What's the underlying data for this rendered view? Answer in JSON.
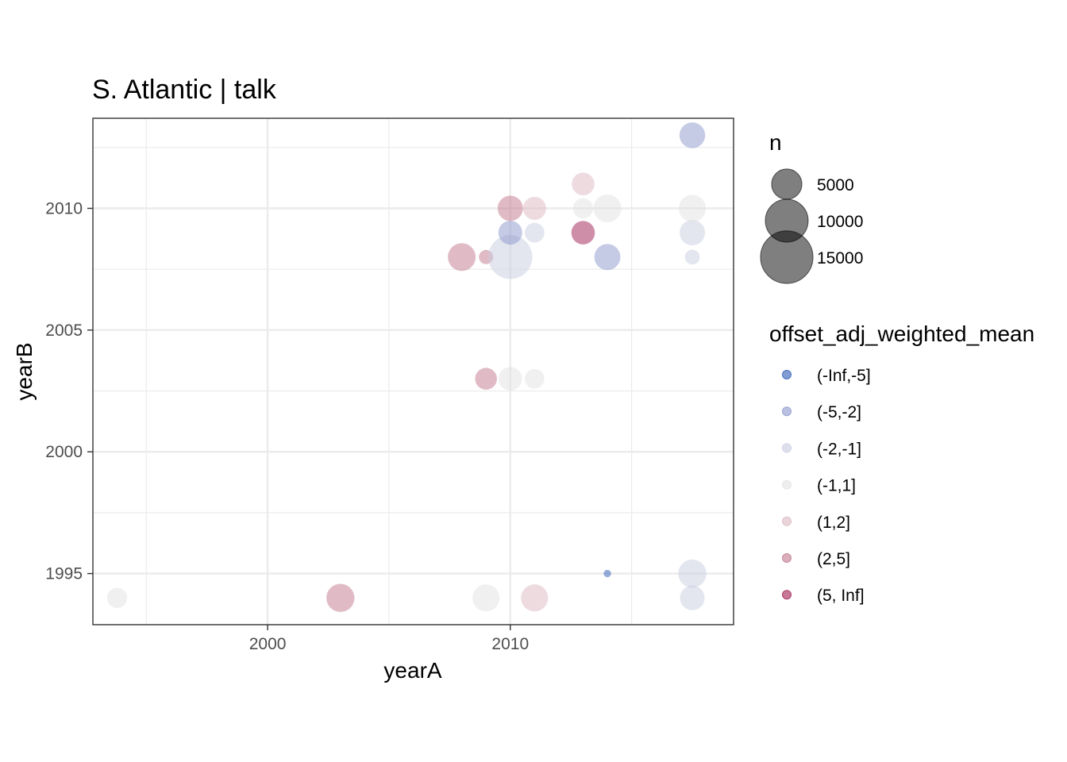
{
  "chart_data": {
    "type": "scatter",
    "title": "S. Atlantic | talk",
    "xlabel": "yearA",
    "ylabel": "yearB",
    "xlim": [
      1992.8,
      2019.2
    ],
    "ylim": [
      1992.9,
      2013.7
    ],
    "x_ticks": [
      2000,
      2010
    ],
    "y_ticks": [
      1995,
      2000,
      2005,
      2010
    ],
    "grid": true,
    "legend_position": "right",
    "size_legend": {
      "title": "n",
      "entries": [
        {
          "label": "5000",
          "value": 5000
        },
        {
          "label": "10000",
          "value": 10000
        },
        {
          "label": "15000",
          "value": 15000
        }
      ]
    },
    "color_legend": {
      "title": "offset_adj_weighted_mean",
      "entries": [
        {
          "label": "(-Inf,-5]",
          "color": "#2d5bb5"
        },
        {
          "label": "(-5,-2]",
          "color": "#8c98cc"
        },
        {
          "label": "(-2,-1]",
          "color": "#c7cbe0"
        },
        {
          "label": "(-1,1]",
          "color": "#e2e2e2"
        },
        {
          "label": "(1,2]",
          "color": "#dbb8c2"
        },
        {
          "label": "(2,5]",
          "color": "#c2788e"
        },
        {
          "label": "(5, Inf]",
          "color": "#a01e50"
        }
      ]
    },
    "points": [
      {
        "x": 1993.8,
        "y": 1994,
        "n": 2200,
        "class": "(-1,1]"
      },
      {
        "x": 2003,
        "y": 1994,
        "n": 4300,
        "class": "(2,5]"
      },
      {
        "x": 2009,
        "y": 1994,
        "n": 4000,
        "class": "(-1,1]"
      },
      {
        "x": 2011,
        "y": 1994,
        "n": 4000,
        "class": "(1,2]"
      },
      {
        "x": 2017.5,
        "y": 1994,
        "n": 3300,
        "class": "(-2,-1]"
      },
      {
        "x": 2014,
        "y": 1995,
        "n": 300,
        "class": "(-Inf,-5]"
      },
      {
        "x": 2017.5,
        "y": 1995,
        "n": 4300,
        "class": "(-2,-1]"
      },
      {
        "x": 2009,
        "y": 2003,
        "n": 2600,
        "class": "(2,5]"
      },
      {
        "x": 2010,
        "y": 2003,
        "n": 3000,
        "class": "(-1,1]"
      },
      {
        "x": 2011,
        "y": 2003,
        "n": 2100,
        "class": "(-1,1]"
      },
      {
        "x": 2008,
        "y": 2008,
        "n": 4200,
        "class": "(2,5]"
      },
      {
        "x": 2009,
        "y": 2008,
        "n": 1100,
        "class": "(2,5]"
      },
      {
        "x": 2010,
        "y": 2008,
        "n": 10500,
        "class": "(-2,-1]"
      },
      {
        "x": 2014,
        "y": 2008,
        "n": 3700,
        "class": "(-5,-2]"
      },
      {
        "x": 2017.5,
        "y": 2008,
        "n": 1200,
        "class": "(-2,-1]"
      },
      {
        "x": 2010,
        "y": 2009,
        "n": 3100,
        "class": "(-5,-2]"
      },
      {
        "x": 2011,
        "y": 2009,
        "n": 2100,
        "class": "(-2,-1]"
      },
      {
        "x": 2013,
        "y": 2009,
        "n": 3000,
        "class": "(5, Inf]"
      },
      {
        "x": 2017.5,
        "y": 2009,
        "n": 3500,
        "class": "(-2,-1]"
      },
      {
        "x": 2010,
        "y": 2010,
        "n": 3500,
        "class": "(2,5]"
      },
      {
        "x": 2011,
        "y": 2010,
        "n": 2900,
        "class": "(1,2]"
      },
      {
        "x": 2013,
        "y": 2010,
        "n": 2200,
        "class": "(-1,1]"
      },
      {
        "x": 2014,
        "y": 2010,
        "n": 4200,
        "class": "(-1,1]"
      },
      {
        "x": 2017.5,
        "y": 2010,
        "n": 4000,
        "class": "(-1,1]"
      },
      {
        "x": 2013,
        "y": 2011,
        "n": 2800,
        "class": "(1,2]"
      },
      {
        "x": 2017.5,
        "y": 2013,
        "n": 3600,
        "class": "(-5,-2]"
      }
    ]
  }
}
